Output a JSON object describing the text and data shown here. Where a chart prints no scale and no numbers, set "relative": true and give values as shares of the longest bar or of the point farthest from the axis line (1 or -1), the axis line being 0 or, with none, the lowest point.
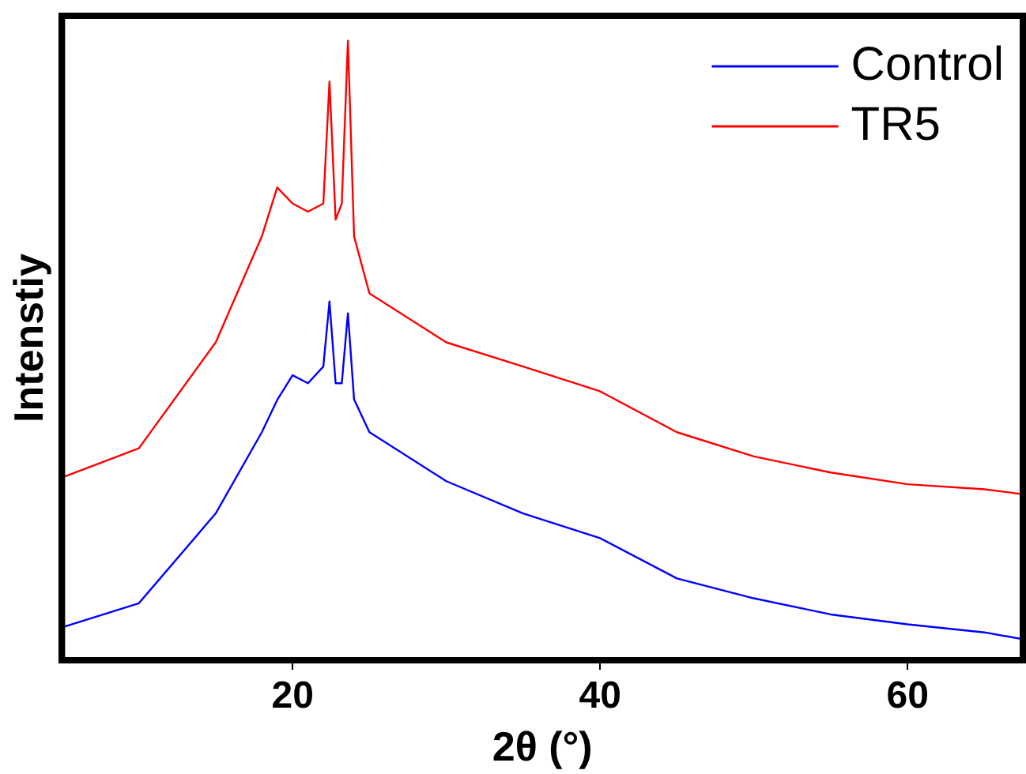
{
  "chart_data": {
    "type": "line",
    "relative": true,
    "xlabel": "2θ (°)",
    "ylabel": "Intenstiy",
    "xlim": [
      5,
      67.5
    ],
    "xticks": [
      20,
      40,
      60
    ],
    "legend": "top right",
    "grid": false,
    "marker": "none",
    "line_style": "solid",
    "x": [
      5,
      10,
      15,
      18,
      19,
      20,
      21,
      22,
      22.4,
      22.8,
      23.2,
      23.6,
      24,
      25,
      30,
      35,
      40,
      45,
      50,
      55,
      60,
      65,
      67.5
    ],
    "series": [
      {
        "name": "Control",
        "color": "#0000ff",
        "values": [
          0.053,
          0.092,
          0.237,
          0.368,
          0.42,
          0.46,
          0.447,
          0.474,
          0.579,
          0.447,
          0.447,
          0.56,
          0.421,
          0.368,
          0.289,
          0.237,
          0.197,
          0.132,
          0.1,
          0.074,
          0.058,
          0.045,
          0.034
        ]
      },
      {
        "name": "TR5",
        "color": "#ff0000",
        "values": [
          0.295,
          0.342,
          0.513,
          0.684,
          0.763,
          0.737,
          0.724,
          0.737,
          0.934,
          0.711,
          0.737,
          1,
          0.684,
          0.592,
          0.513,
          0.474,
          0.434,
          0.368,
          0.329,
          0.303,
          0.284,
          0.276,
          0.268
        ]
      }
    ]
  }
}
